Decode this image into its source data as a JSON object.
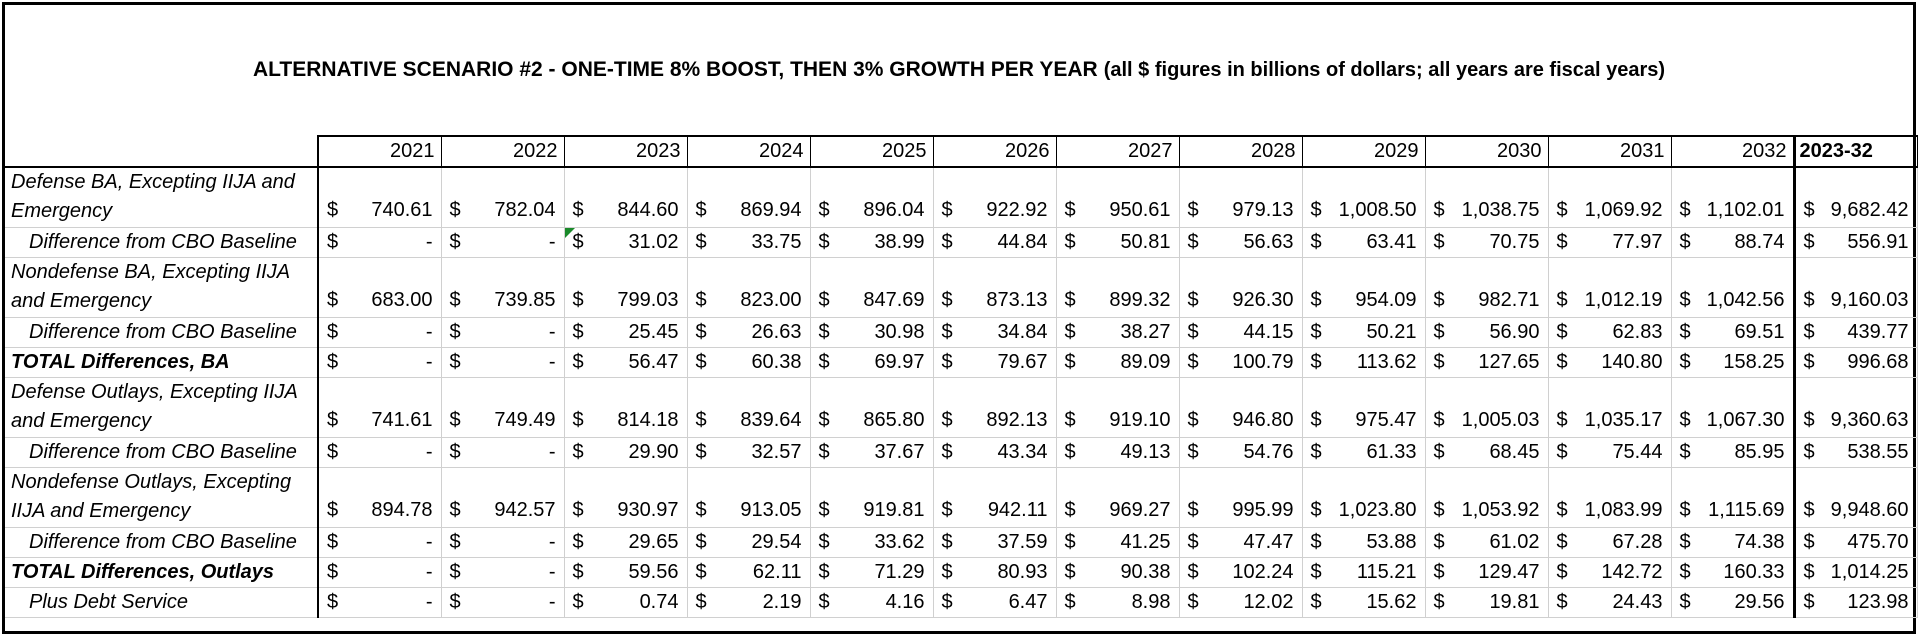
{
  "title": {
    "main": "ALTERNATIVE SCENARIO #2 - ONE-TIME 8% BOOST, THEN 3% GROWTH PER YEAR",
    "note": "(all $ figures in billions of dollars; all years are fiscal years)"
  },
  "columns": [
    "2021",
    "2022",
    "2023",
    "2024",
    "2025",
    "2026",
    "2027",
    "2028",
    "2029",
    "2030",
    "2031",
    "2032",
    "2023-32"
  ],
  "currency_symbol": "$",
  "rows": [
    {
      "label": "Defense BA, Excepting IIJA and Emergency",
      "values": [
        "740.61",
        "782.04",
        "844.60",
        "869.94",
        "896.04",
        "922.92",
        "950.61",
        "979.13",
        "1,008.50",
        "1,038.75",
        "1,069.92",
        "1,102.01",
        "9,682.42"
      ]
    },
    {
      "label": "Difference from CBO Baseline",
      "values": [
        "-",
        "-",
        "31.02",
        "33.75",
        "38.99",
        "44.84",
        "50.81",
        "56.63",
        "63.41",
        "70.75",
        "77.97",
        "88.74",
        "556.91"
      ]
    },
    {
      "label": "Nondefense BA, Excepting IIJA and Emergency",
      "values": [
        "683.00",
        "739.85",
        "799.03",
        "823.00",
        "847.69",
        "873.13",
        "899.32",
        "926.30",
        "954.09",
        "982.71",
        "1,012.19",
        "1,042.56",
        "9,160.03"
      ]
    },
    {
      "label": "Difference from CBO Baseline",
      "values": [
        "-",
        "-",
        "25.45",
        "26.63",
        "30.98",
        "34.84",
        "38.27",
        "44.15",
        "50.21",
        "56.90",
        "62.83",
        "69.51",
        "439.77"
      ]
    },
    {
      "label": "TOTAL Differences, BA",
      "values": [
        "-",
        "-",
        "56.47",
        "60.38",
        "69.97",
        "79.67",
        "89.09",
        "100.79",
        "113.62",
        "127.65",
        "140.80",
        "158.25",
        "996.68"
      ]
    },
    {
      "label": "Defense Outlays, Excepting IIJA and Emergency",
      "values": [
        "741.61",
        "749.49",
        "814.18",
        "839.64",
        "865.80",
        "892.13",
        "919.10",
        "946.80",
        "975.47",
        "1,005.03",
        "1,035.17",
        "1,067.30",
        "9,360.63"
      ]
    },
    {
      "label": "Difference from CBO Baseline",
      "values": [
        "-",
        "-",
        "29.90",
        "32.57",
        "37.67",
        "43.34",
        "49.13",
        "54.76",
        "61.33",
        "68.45",
        "75.44",
        "85.95",
        "538.55"
      ]
    },
    {
      "label": "Nondefense Outlays, Excepting IIJA and Emergency",
      "values": [
        "894.78",
        "942.57",
        "930.97",
        "913.05",
        "919.81",
        "942.11",
        "969.27",
        "995.99",
        "1,023.80",
        "1,053.92",
        "1,083.99",
        "1,115.69",
        "9,948.60"
      ]
    },
    {
      "label": "Difference from CBO Baseline",
      "values": [
        "-",
        "-",
        "29.65",
        "29.54",
        "33.62",
        "37.59",
        "41.25",
        "47.47",
        "53.88",
        "61.02",
        "67.28",
        "74.38",
        "475.70"
      ]
    },
    {
      "label": "TOTAL Differences, Outlays",
      "values": [
        "-",
        "-",
        "59.56",
        "62.11",
        "71.29",
        "80.93",
        "90.38",
        "102.24",
        "115.21",
        "129.47",
        "142.72",
        "160.33",
        "1,014.25"
      ]
    },
    {
      "label": "Plus Debt Service",
      "values": [
        "-",
        "-",
        "0.74",
        "2.19",
        "4.16",
        "6.47",
        "8.98",
        "12.02",
        "15.62",
        "19.81",
        "24.43",
        "29.56",
        "123.98"
      ]
    }
  ]
}
